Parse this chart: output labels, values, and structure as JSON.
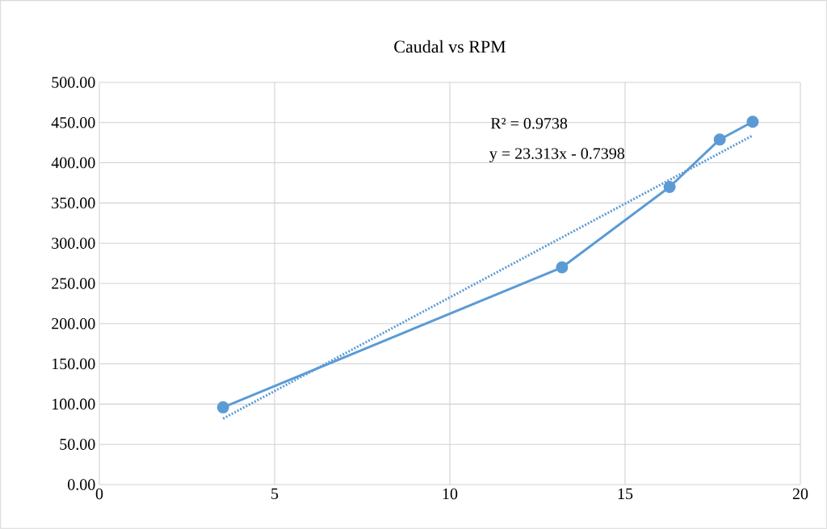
{
  "chart_data": {
    "type": "line",
    "title": "Caudal vs RPM",
    "xlim": [
      0,
      20
    ],
    "xticks": [
      0,
      5,
      10,
      15,
      20
    ],
    "ylim": [
      0,
      500
    ],
    "yticks": [
      {
        "value": 0,
        "label": "0.00"
      },
      {
        "value": 50,
        "label": "50.00"
      },
      {
        "value": 100,
        "label": "100.00"
      },
      {
        "value": 150,
        "label": "150.00"
      },
      {
        "value": 200,
        "label": "200.00"
      },
      {
        "value": 250,
        "label": "250.00"
      },
      {
        "value": 300,
        "label": "300.00"
      },
      {
        "value": 350,
        "label": "350.00"
      },
      {
        "value": 400,
        "label": "400.00"
      },
      {
        "value": 450,
        "label": "450.00"
      },
      {
        "value": 500,
        "label": "500.00"
      }
    ],
    "grid": true,
    "series": [
      {
        "x": [
          3.53,
          13.2,
          16.27,
          17.7,
          18.64
        ],
        "values": [
          96,
          270,
          370,
          429,
          451
        ],
        "color": "#5b9bd5",
        "marker": "circle",
        "line_style": "solid"
      },
      {
        "x": [
          3.53,
          18.64
        ],
        "values": [
          82,
          434
        ],
        "color": "#5b9bd5",
        "marker": "none",
        "line_style": "dotted"
      }
    ],
    "annotations": [
      "R² = 0.9738",
      "y = 23.313x - 0.7398"
    ]
  }
}
